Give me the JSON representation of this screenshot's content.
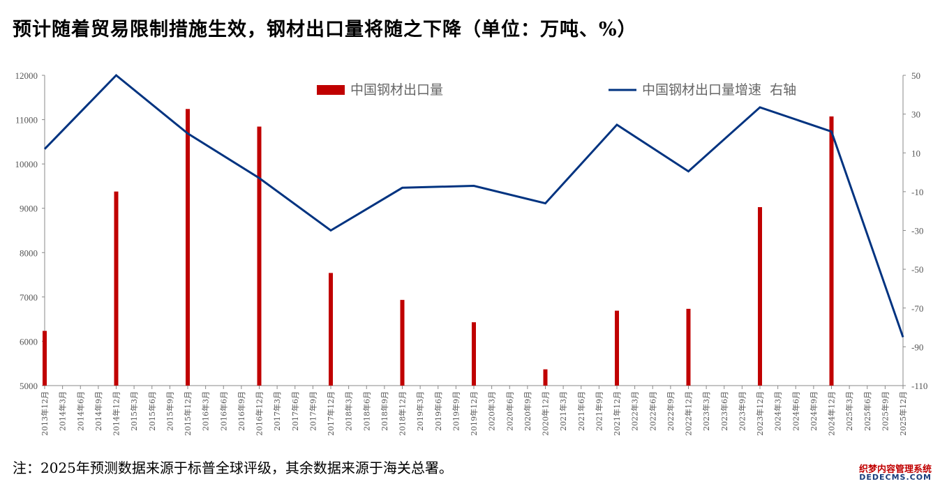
{
  "title": "预计随着贸易限制措施生效，钢材出口量将随之下降（单位：万吨、%）",
  "note": "注：2025年预测数据来源于标普全球评级，其余数据来源于海关总署。",
  "watermark": {
    "line1": "织梦内容管理系统",
    "line2": "DEDECMS.COM"
  },
  "chart_data": {
    "type": "bar+line",
    "categories": [
      "2013年12月",
      "2014年3月",
      "2014年6月",
      "2014年9月",
      "2014年12月",
      "2015年3月",
      "2015年6月",
      "2015年9月",
      "2015年12月",
      "2016年3月",
      "2016年6月",
      "2016年9月",
      "2016年12月",
      "2017年3月",
      "2017年6月",
      "2017年9月",
      "2017年12月",
      "2018年3月",
      "2018年6月",
      "2018年9月",
      "2018年12月",
      "2019年3月",
      "2019年6月",
      "2019年9月",
      "2019年12月",
      "2020年3月",
      "2020年6月",
      "2020年9月",
      "2020年12月",
      "2021年3月",
      "2021年6月",
      "2021年9月",
      "2021年12月",
      "2022年3月",
      "2022年6月",
      "2022年9月",
      "2022年12月",
      "2023年3月",
      "2023年6月",
      "2023年9月",
      "2023年12月",
      "2024年3月",
      "2024年6月",
      "2024年9月",
      "2024年12月",
      "2025年3月",
      "2025年6月",
      "2025年9月",
      "2025年12月"
    ],
    "series": [
      {
        "name": "中国钢材出口量",
        "type": "bar",
        "axis": "left",
        "color": "#c00000",
        "points": [
          [
            0,
            6234
          ],
          [
            4,
            9378
          ],
          [
            8,
            11240
          ],
          [
            12,
            10843
          ],
          [
            16,
            7541
          ],
          [
            20,
            6933
          ],
          [
            24,
            6429
          ],
          [
            28,
            5367
          ],
          [
            32,
            6690
          ],
          [
            36,
            6732
          ],
          [
            40,
            9026
          ],
          [
            44,
            11072
          ]
        ]
      },
      {
        "name": "中国钢材出口量增速  右轴",
        "type": "line",
        "axis": "right",
        "color": "#003380",
        "points": [
          [
            0,
            12
          ],
          [
            4,
            50
          ],
          [
            8,
            20
          ],
          [
            12,
            -3
          ],
          [
            16,
            -30
          ],
          [
            20,
            -8
          ],
          [
            24,
            -7
          ],
          [
            28,
            -16
          ],
          [
            32,
            24.5
          ],
          [
            36,
            0.5
          ],
          [
            40,
            33.5
          ],
          [
            44,
            21
          ],
          [
            48,
            -85
          ]
        ]
      }
    ],
    "yleft": {
      "min": 5000,
      "max": 12000,
      "ticks": [
        5000,
        6000,
        7000,
        8000,
        9000,
        10000,
        11000,
        12000
      ]
    },
    "yright": {
      "min": -110,
      "max": 50,
      "ticks": [
        -110,
        -90,
        -70,
        -50,
        -30,
        -10,
        10,
        30,
        50
      ]
    },
    "legend_position": "top"
  }
}
